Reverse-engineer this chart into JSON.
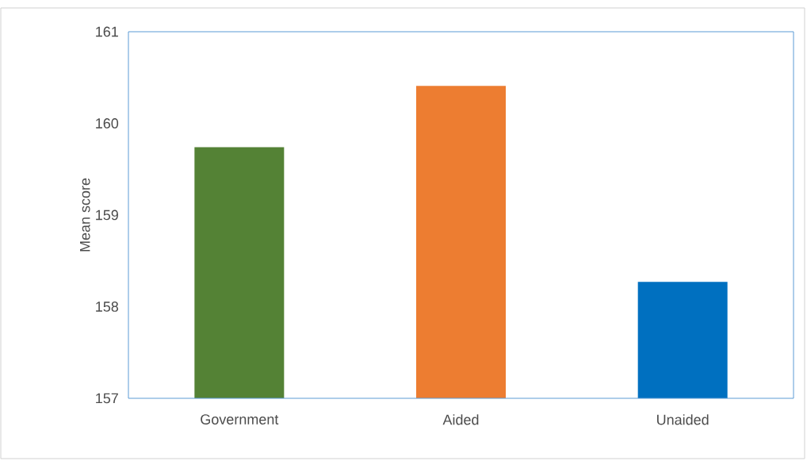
{
  "chart_data": {
    "type": "bar",
    "ylabel": "Mean score",
    "categories": [
      "Government",
      "Aided",
      "Unaided"
    ],
    "values": [
      159.74,
      160.41,
      158.27
    ],
    "colors": [
      "#548235",
      "#ed7d31",
      "#0070c0"
    ],
    "ylim": [
      157,
      161
    ],
    "yticks": [
      157,
      158,
      159,
      160,
      161
    ]
  }
}
